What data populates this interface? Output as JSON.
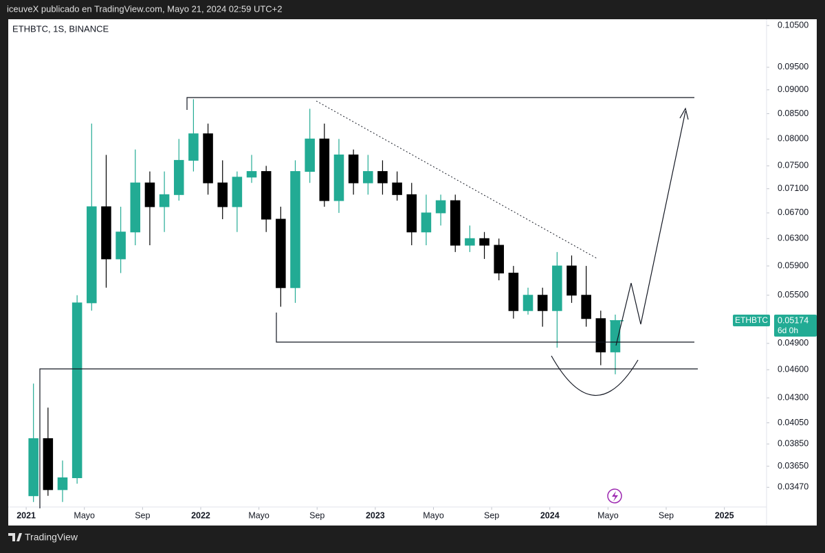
{
  "chart_data": {
    "type": "candlestick",
    "header": "iceuveX publicado en TradingView.com, Mayo 21, 2024 02:59 UTC+2",
    "title": "ETHBTC, 1S, BINANCE",
    "footer": "TradingView",
    "price_tag": {
      "symbol": "ETHBTC",
      "countdown": "6d 0h"
    },
    "log_scale": true,
    "up_color": "#22ab94",
    "down_color": "#000000",
    "x": [
      "2021-01",
      "2021-02",
      "2021-03",
      "2021-04",
      "2021-05",
      "2021-06",
      "2021-07",
      "2021-08",
      "2021-09",
      "2021-10",
      "2021-11",
      "2021-12",
      "2022-01",
      "2022-02",
      "2022-03",
      "2022-04",
      "2022-05",
      "2022-06",
      "2022-07",
      "2022-08",
      "2022-09",
      "2022-10",
      "2022-11",
      "2022-12",
      "2023-01",
      "2023-02",
      "2023-03",
      "2023-04",
      "2023-05",
      "2023-06",
      "2023-07",
      "2023-08",
      "2023-09",
      "2023-10",
      "2023-11",
      "2023-12",
      "2024-01",
      "2024-02",
      "2024-03",
      "2024-04",
      "2024-05"
    ],
    "open": [
      0.034,
      0.039,
      0.0345,
      0.0355,
      0.054,
      0.068,
      0.06,
      0.064,
      0.072,
      0.068,
      0.07,
      0.076,
      0.081,
      0.072,
      0.068,
      0.073,
      0.074,
      0.066,
      0.056,
      0.074,
      0.08,
      0.069,
      0.077,
      0.072,
      0.074,
      0.072,
      0.07,
      0.064,
      0.067,
      0.069,
      0.062,
      0.063,
      0.062,
      0.058,
      0.053,
      0.055,
      0.053,
      0.059,
      0.055,
      0.052,
      0.048
    ],
    "high": [
      0.0445,
      0.042,
      0.037,
      0.055,
      0.083,
      0.077,
      0.068,
      0.078,
      0.074,
      0.074,
      0.08,
      0.088,
      0.083,
      0.076,
      0.074,
      0.077,
      0.075,
      0.068,
      0.076,
      0.086,
      0.083,
      0.08,
      0.078,
      0.077,
      0.076,
      0.074,
      0.072,
      0.07,
      0.07,
      0.07,
      0.065,
      0.064,
      0.063,
      0.059,
      0.056,
      0.056,
      0.061,
      0.0605,
      0.059,
      0.053,
      0.0525
    ],
    "low": [
      0.0335,
      0.034,
      0.0335,
      0.035,
      0.053,
      0.056,
      0.058,
      0.062,
      0.062,
      0.064,
      0.069,
      0.074,
      0.07,
      0.066,
      0.064,
      0.072,
      0.064,
      0.0535,
      0.054,
      0.072,
      0.068,
      0.067,
      0.07,
      0.07,
      0.07,
      0.069,
      0.062,
      0.062,
      0.065,
      0.061,
      0.061,
      0.06,
      0.057,
      0.052,
      0.0525,
      0.051,
      0.0485,
      0.054,
      0.051,
      0.0465,
      0.0455
    ],
    "close": [
      0.039,
      0.0345,
      0.0355,
      0.054,
      0.068,
      0.06,
      0.064,
      0.072,
      0.068,
      0.07,
      0.076,
      0.081,
      0.072,
      0.068,
      0.073,
      0.074,
      0.066,
      0.056,
      0.074,
      0.08,
      0.069,
      0.077,
      0.072,
      0.074,
      0.072,
      0.07,
      0.064,
      0.067,
      0.069,
      0.062,
      0.063,
      0.062,
      0.058,
      0.053,
      0.055,
      0.053,
      0.059,
      0.055,
      0.052,
      0.048,
      0.05174
    ],
    "xlim": [
      "2020-11-24",
      "2025-03-28"
    ],
    "xticks": [
      {
        "value": "2021-01-01",
        "label": "2021"
      },
      {
        "value": "2021-05-01",
        "label": "Mayo"
      },
      {
        "value": "2021-09-01",
        "label": "Sep"
      },
      {
        "value": "2022-01-01",
        "label": "2022"
      },
      {
        "value": "2022-05-01",
        "label": "Mayo"
      },
      {
        "value": "2022-09-01",
        "label": "Sep"
      },
      {
        "value": "2023-01-01",
        "label": "2023"
      },
      {
        "value": "2023-05-01",
        "label": "Mayo"
      },
      {
        "value": "2023-09-01",
        "label": "Sep"
      },
      {
        "value": "2024-01-01",
        "label": "2024"
      },
      {
        "value": "2024-05-01",
        "label": "Mayo"
      },
      {
        "value": "2024-09-01",
        "label": "Sep"
      },
      {
        "value": "2025-01-01",
        "label": "2025"
      }
    ],
    "ylim": [
      0.0331,
      0.1066
    ],
    "yticks": [
      {
        "value": 0.105,
        "label": "0.10500"
      },
      {
        "value": 0.095,
        "label": "0.09500"
      },
      {
        "value": 0.09,
        "label": "0.09000"
      },
      {
        "value": 0.085,
        "label": "0.08500"
      },
      {
        "value": 0.08,
        "label": "0.08000"
      },
      {
        "value": 0.075,
        "label": "0.07500"
      },
      {
        "value": 0.071,
        "label": "0.07100"
      },
      {
        "value": 0.067,
        "label": "0.06700"
      },
      {
        "value": 0.063,
        "label": "0.06300"
      },
      {
        "value": 0.059,
        "label": "0.05900"
      },
      {
        "value": 0.055,
        "label": "0.05500"
      },
      {
        "value": 0.049,
        "label": "0.04900"
      },
      {
        "value": 0.046,
        "label": "0.04600"
      },
      {
        "value": 0.043,
        "label": "0.04300"
      },
      {
        "value": 0.0405,
        "label": "0.04050"
      },
      {
        "value": 0.0385,
        "label": "0.03850"
      },
      {
        "value": 0.0365,
        "label": "0.03650"
      },
      {
        "value": 0.0347,
        "label": "0.03470"
      }
    ]
  }
}
